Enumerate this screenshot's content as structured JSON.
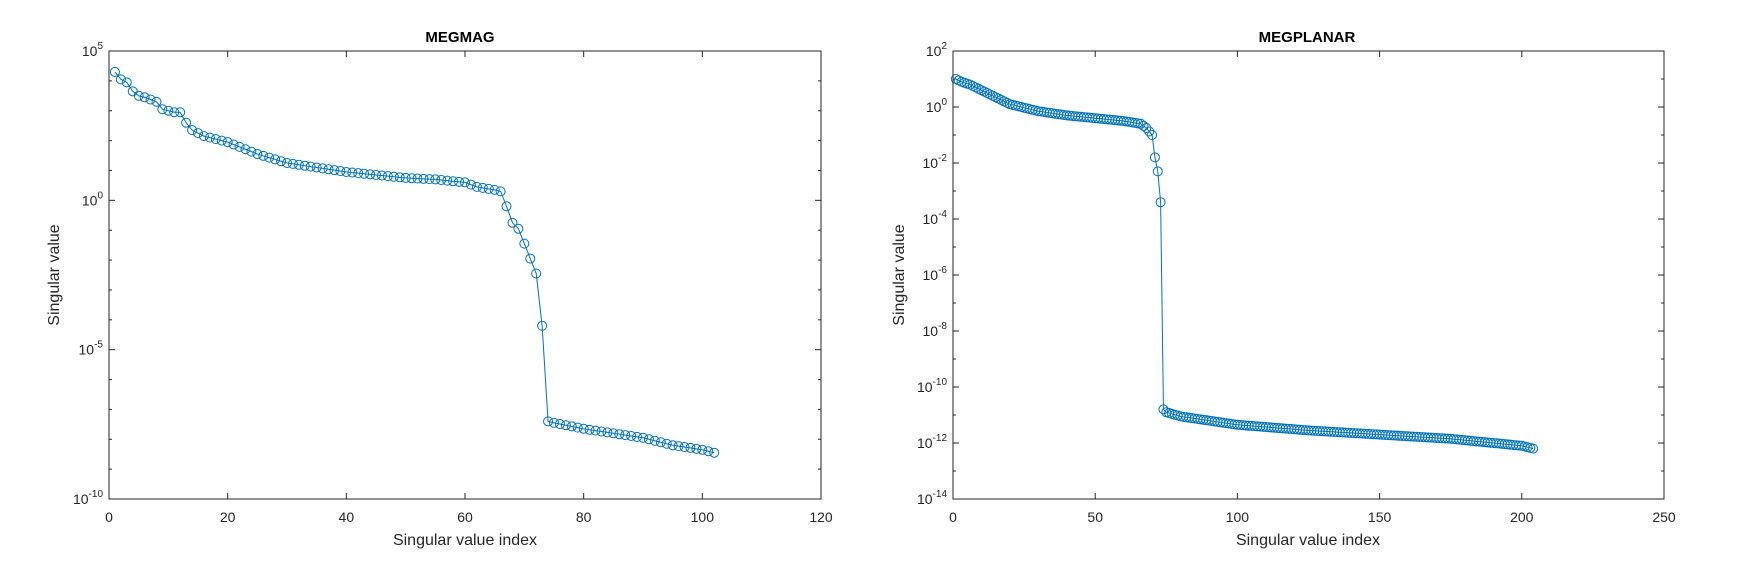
{
  "chart_data": [
    {
      "type": "line",
      "title": "MEGMAG",
      "xlabel": "Singular value index",
      "ylabel": "Singular value",
      "xlim": [
        0,
        120
      ],
      "ylim_log10": [
        -10,
        5
      ],
      "yscale": "log",
      "grid": false,
      "marker": "circle",
      "color": "#0072BD",
      "x_ticks": [
        0,
        20,
        40,
        60,
        80,
        100,
        120
      ],
      "y_ticks": [
        {
          "base": "10",
          "exp": "5",
          "log10": 5
        },
        {
          "base": "10",
          "exp": "0",
          "log10": 0
        },
        {
          "base": "10",
          "exp": "-5",
          "log10": -5
        },
        {
          "base": "10",
          "exp": "-10",
          "log10": -10
        }
      ],
      "anchors": [
        [
          1,
          4.3
        ],
        [
          2,
          4.05
        ],
        [
          3,
          3.95
        ],
        [
          4,
          3.65
        ],
        [
          5,
          3.5
        ],
        [
          6,
          3.45
        ],
        [
          8,
          3.3
        ],
        [
          9,
          3.05
        ],
        [
          11,
          2.95
        ],
        [
          12,
          2.95
        ],
        [
          13,
          2.6
        ],
        [
          14,
          2.35
        ],
        [
          16,
          2.15
        ],
        [
          20,
          1.95
        ],
        [
          25,
          1.55
        ],
        [
          30,
          1.25
        ],
        [
          35,
          1.1
        ],
        [
          40,
          0.95
        ],
        [
          45,
          0.85
        ],
        [
          50,
          0.75
        ],
        [
          55,
          0.7
        ],
        [
          60,
          0.6
        ],
        [
          62,
          0.45
        ],
        [
          65,
          0.35
        ],
        [
          66,
          0.3
        ],
        [
          67,
          -0.2
        ],
        [
          68,
          -0.75
        ],
        [
          69,
          -0.95
        ],
        [
          70,
          -1.45
        ],
        [
          71,
          -1.95
        ],
        [
          72,
          -2.45
        ],
        [
          73,
          -4.2
        ],
        [
          74,
          -7.4
        ],
        [
          75,
          -7.45
        ],
        [
          80,
          -7.65
        ],
        [
          85,
          -7.8
        ],
        [
          90,
          -7.95
        ],
        [
          95,
          -8.2
        ],
        [
          100,
          -8.35
        ],
        [
          102,
          -8.45
        ]
      ],
      "n_points": 102
    },
    {
      "type": "line",
      "title": "MEGPLANAR",
      "xlabel": "Singular value index",
      "ylabel": "Singular value",
      "xlim": [
        0,
        250
      ],
      "ylim_log10": [
        -14,
        2
      ],
      "yscale": "log",
      "grid": false,
      "marker": "circle",
      "color": "#0072BD",
      "x_ticks": [
        0,
        50,
        100,
        150,
        200,
        250
      ],
      "y_ticks": [
        {
          "base": "10",
          "exp": "2",
          "log10": 2
        },
        {
          "base": "10",
          "exp": "0",
          "log10": 0
        },
        {
          "base": "10",
          "exp": "-2",
          "log10": -2
        },
        {
          "base": "10",
          "exp": "-4",
          "log10": -4
        },
        {
          "base": "10",
          "exp": "-6",
          "log10": -6
        },
        {
          "base": "10",
          "exp": "-8",
          "log10": -8
        },
        {
          "base": "10",
          "exp": "-10",
          "log10": -10
        },
        {
          "base": "10",
          "exp": "-12",
          "log10": -12
        },
        {
          "base": "10",
          "exp": "-14",
          "log10": -14
        }
      ],
      "anchors": [
        [
          1,
          1.0
        ],
        [
          3,
          0.9
        ],
        [
          6,
          0.8
        ],
        [
          10,
          0.6
        ],
        [
          15,
          0.35
        ],
        [
          20,
          0.1
        ],
        [
          30,
          -0.15
        ],
        [
          40,
          -0.3
        ],
        [
          50,
          -0.4
        ],
        [
          60,
          -0.5
        ],
        [
          66,
          -0.6
        ],
        [
          68,
          -0.75
        ],
        [
          70,
          -1.0
        ],
        [
          71,
          -1.8
        ],
        [
          72,
          -2.3
        ],
        [
          73,
          -3.4
        ],
        [
          74,
          -10.8
        ],
        [
          75,
          -10.9
        ],
        [
          80,
          -11.05
        ],
        [
          100,
          -11.35
        ],
        [
          125,
          -11.55
        ],
        [
          150,
          -11.7
        ],
        [
          175,
          -11.85
        ],
        [
          200,
          -12.1
        ],
        [
          204,
          -12.2
        ]
      ],
      "n_points": 204
    }
  ]
}
